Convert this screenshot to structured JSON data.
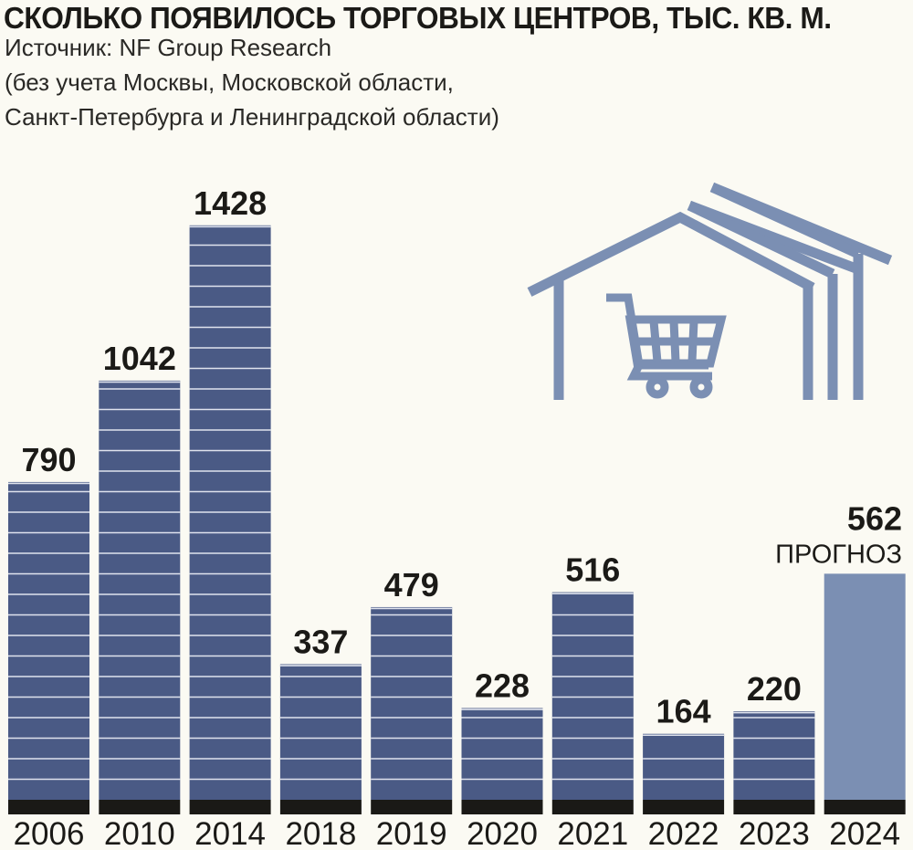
{
  "title": "СКОЛЬКО ПОЯВИЛОСЬ ТОРГОВЫХ ЦЕНТРОВ, ТЫС. КВ. М.",
  "source": "Источник: NF Group Research",
  "note_line1": "(без учета Москвы, Московской области,",
  "note_line2": "Санкт-Петербурга и Ленинградской области)",
  "forecast_label": "ПРОГНОЗ",
  "icon": "mall-building-with-shopping-cart-icon",
  "colors": {
    "bar": "#4a5a85",
    "bar_forecast": "#7b8fb3",
    "bar_stripe": "#dfe3ee",
    "base_strip": "#1a1916",
    "icon": "#7b8fb3",
    "background": "#fbfaf3"
  },
  "chart_data": {
    "type": "bar",
    "title": "СКОЛЬКО ПОЯВИЛОСЬ ТОРГОВЫХ ЦЕНТРОВ, ТЫС. КВ. М.",
    "categories": [
      "2006",
      "2010",
      "2014",
      "2018",
      "2019",
      "2020",
      "2021",
      "2022",
      "2023",
      "2024"
    ],
    "values": [
      790,
      1042,
      1428,
      337,
      479,
      228,
      516,
      164,
      220,
      562
    ],
    "forecast": [
      false,
      false,
      false,
      false,
      false,
      false,
      false,
      false,
      false,
      true
    ],
    "xlabel": "",
    "ylabel": "",
    "grid": false,
    "legend": "none"
  }
}
